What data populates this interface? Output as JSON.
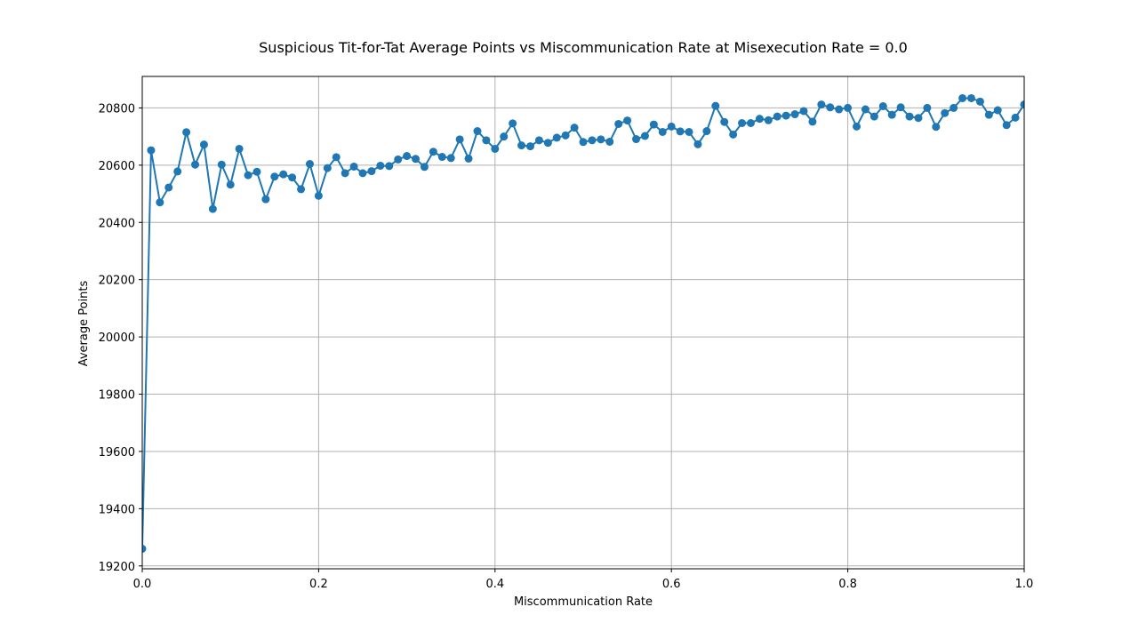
{
  "chart_data": {
    "type": "line",
    "title": "Suspicious Tit-for-Tat Average Points vs Miscommunication Rate at Misexecution Rate = 0.0",
    "xlabel": "Miscommunication Rate",
    "ylabel": "Average Points",
    "xlim": [
      0.0,
      1.0
    ],
    "ylim": [
      19190,
      20910
    ],
    "xticks": [
      0.0,
      0.2,
      0.4,
      0.6,
      0.8,
      1.0
    ],
    "xtick_labels": [
      "0.0",
      "0.2",
      "0.4",
      "0.6",
      "0.8",
      "1.0"
    ],
    "yticks": [
      19200,
      19400,
      19600,
      19800,
      20000,
      20200,
      20400,
      20600,
      20800
    ],
    "ytick_labels": [
      "19200",
      "19400",
      "19600",
      "19800",
      "20000",
      "20200",
      "20400",
      "20600",
      "20800"
    ],
    "grid": true,
    "marker": "circle",
    "color": "#1f77b4",
    "series": [
      {
        "x": [
          0.0,
          0.01,
          0.02,
          0.03,
          0.04,
          0.05,
          0.06,
          0.07,
          0.08,
          0.09,
          0.1,
          0.11,
          0.12,
          0.13,
          0.14,
          0.15,
          0.16,
          0.17,
          0.18,
          0.19,
          0.2,
          0.21,
          0.22,
          0.23,
          0.24,
          0.25,
          0.26,
          0.27,
          0.28,
          0.29,
          0.3,
          0.31,
          0.32,
          0.33,
          0.34,
          0.35,
          0.36,
          0.37,
          0.38,
          0.39,
          0.4,
          0.41,
          0.42,
          0.43,
          0.44,
          0.45,
          0.46,
          0.47,
          0.48,
          0.49,
          0.5,
          0.51,
          0.52,
          0.53,
          0.54,
          0.55,
          0.56,
          0.57,
          0.58,
          0.59,
          0.6,
          0.61,
          0.62,
          0.63,
          0.64,
          0.65,
          0.66,
          0.67,
          0.68,
          0.69,
          0.7,
          0.71,
          0.72,
          0.73,
          0.74,
          0.75,
          0.76,
          0.77,
          0.78,
          0.79,
          0.8,
          0.81,
          0.82,
          0.83,
          0.84,
          0.85,
          0.86,
          0.87,
          0.88,
          0.89,
          0.9,
          0.91,
          0.92,
          0.93,
          0.94,
          0.95,
          0.96,
          0.97,
          0.98,
          0.99,
          1.0
        ],
        "values": [
          19260,
          20652,
          20470,
          20522,
          20578,
          20715,
          20602,
          20672,
          20447,
          20602,
          20532,
          20657,
          20565,
          20577,
          20481,
          20560,
          20568,
          20557,
          20516,
          20604,
          20493,
          20590,
          20628,
          20572,
          20595,
          20572,
          20579,
          20598,
          20597,
          20620,
          20632,
          20622,
          20594,
          20647,
          20629,
          20625,
          20690,
          20623,
          20719,
          20687,
          20657,
          20700,
          20746,
          20669,
          20666,
          20687,
          20678,
          20696,
          20704,
          20731,
          20681,
          20687,
          20690,
          20682,
          20744,
          20756,
          20691,
          20702,
          20742,
          20716,
          20735,
          20718,
          20716,
          20673,
          20719,
          20807,
          20751,
          20707,
          20747,
          20747,
          20762,
          20757,
          20770,
          20773,
          20778,
          20789,
          20752,
          20812,
          20802,
          20795,
          20800,
          20735,
          20795,
          20770,
          20806,
          20776,
          20802,
          20770,
          20765,
          20800,
          20734,
          20782,
          20800,
          20834,
          20834,
          20822,
          20776,
          20792,
          20740,
          20766,
          20812
        ]
      }
    ]
  }
}
